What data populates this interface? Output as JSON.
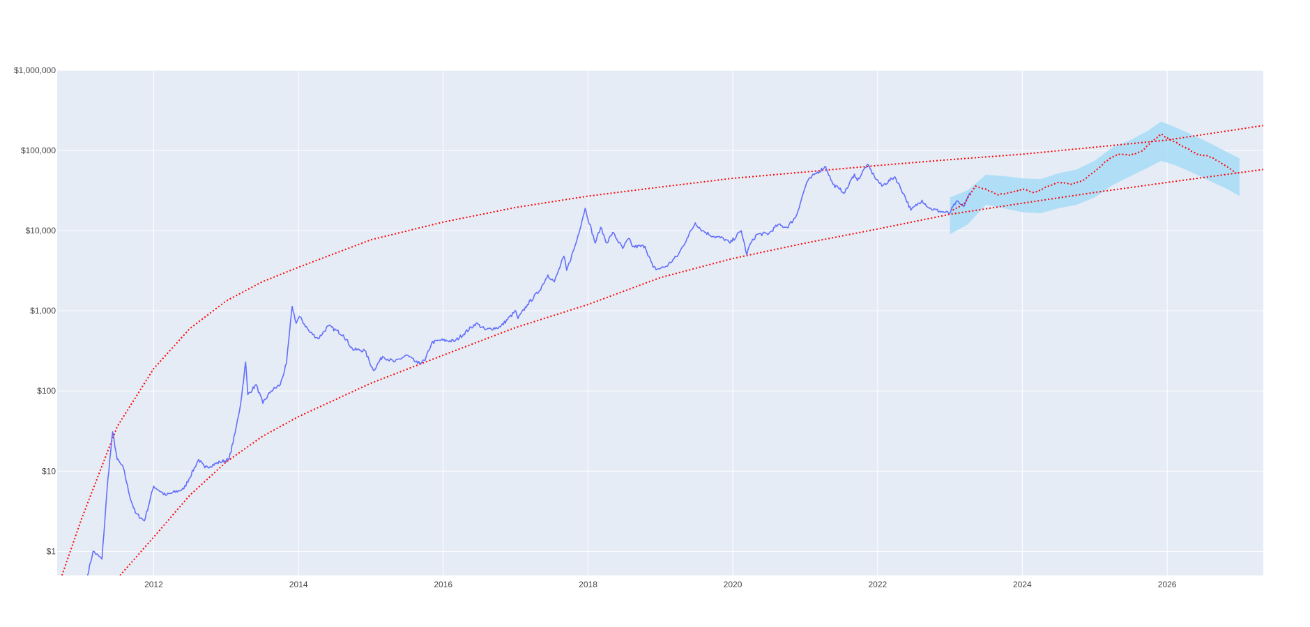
{
  "chart_data": {
    "type": "line",
    "title": "",
    "xlabel": "",
    "ylabel": "",
    "x_scale": "date",
    "y_scale": "log",
    "xlim": [
      "2010-09-01",
      "2027-05-01"
    ],
    "ylim": [
      0.5,
      1000000
    ],
    "x_ticks": [
      "2012",
      "2014",
      "2016",
      "2018",
      "2020",
      "2022",
      "2024",
      "2026"
    ],
    "y_ticks": [
      {
        "value": 1,
        "label": "$1"
      },
      {
        "value": 10,
        "label": "$10"
      },
      {
        "value": 100,
        "label": "$100"
      },
      {
        "value": 1000,
        "label": "$1,000"
      },
      {
        "value": 10000,
        "label": "$10,000"
      },
      {
        "value": 100000,
        "label": "$100,000"
      },
      {
        "value": 1000000,
        "label": "$1,000,000"
      }
    ],
    "grid": true,
    "legend": "none",
    "colors": {
      "plot_background": "#e5ecf6",
      "grid": "#ffffff",
      "price": "#636efa",
      "forecast": "#ff0000",
      "band": "#a8dcf7",
      "bounds": "#ff0000"
    },
    "series": [
      {
        "style": "solid",
        "x": [
          "2011-02-01",
          "2011-03-01",
          "2011-04-15",
          "2011-05-15",
          "2011-06-08",
          "2011-07-01",
          "2011-08-01",
          "2011-09-01",
          "2011-10-01",
          "2011-11-15",
          "2012-01-01",
          "2012-03-01",
          "2012-06-01",
          "2012-08-15",
          "2012-09-15",
          "2012-12-01",
          "2013-01-15",
          "2013-02-15",
          "2013-03-15",
          "2013-04-09",
          "2013-04-20",
          "2013-06-01",
          "2013-07-05",
          "2013-08-15",
          "2013-10-01",
          "2013-11-01",
          "2013-11-30",
          "2013-12-20",
          "2014-01-05",
          "2014-02-25",
          "2014-04-10",
          "2014-06-01",
          "2014-08-15",
          "2014-10-01",
          "2014-12-01",
          "2015-01-14",
          "2015-03-01",
          "2015-05-01",
          "2015-07-01",
          "2015-08-25",
          "2015-10-01",
          "2015-11-04",
          "2015-12-15",
          "2016-03-01",
          "2016-06-15",
          "2016-08-01",
          "2016-10-15",
          "2017-01-01",
          "2017-01-12",
          "2017-03-01",
          "2017-05-01",
          "2017-06-12",
          "2017-07-15",
          "2017-09-01",
          "2017-09-15",
          "2017-11-01",
          "2017-12-17",
          "2018-02-06",
          "2018-03-05",
          "2018-04-06",
          "2018-05-05",
          "2018-06-25",
          "2018-07-25",
          "2018-08-15",
          "2018-10-15",
          "2018-11-25",
          "2018-12-15",
          "2019-02-01",
          "2019-04-01",
          "2019-05-15",
          "2019-06-26",
          "2019-08-01",
          "2019-09-25",
          "2019-11-15",
          "2019-12-18",
          "2020-02-13",
          "2020-03-12",
          "2020-03-25",
          "2020-05-01",
          "2020-07-01",
          "2020-08-15",
          "2020-10-01",
          "2020-11-15",
          "2021-01-08",
          "2021-02-15",
          "2021-04-14",
          "2021-05-20",
          "2021-06-21",
          "2021-07-20",
          "2021-09-06",
          "2021-09-21",
          "2021-11-09",
          "2021-12-15",
          "2022-01-22",
          "2022-03-29",
          "2022-05-12",
          "2022-06-18",
          "2022-08-13",
          "2022-09-20",
          "2022-11-09",
          "2022-12-30",
          "2023-02-01",
          "2023-03-10",
          "2023-04-14"
        ],
        "y": [
          0.5,
          1,
          0.8,
          8,
          31,
          14,
          11,
          5,
          3,
          2.4,
          6.5,
          5,
          6,
          14,
          11,
          13,
          14,
          30,
          70,
          230,
          90,
          120,
          70,
          100,
          120,
          220,
          1140,
          700,
          850,
          550,
          450,
          650,
          500,
          330,
          320,
          180,
          270,
          230,
          280,
          220,
          240,
          400,
          430,
          420,
          700,
          580,
          630,
          1000,
          800,
          1200,
          1800,
          2800,
          2300,
          4800,
          3200,
          7000,
          19000,
          7000,
          11000,
          7000,
          9500,
          6000,
          8000,
          6300,
          6400,
          3500,
          3300,
          3600,
          5000,
          8000,
          12500,
          10000,
          8500,
          8000,
          7000,
          10000,
          5000,
          6500,
          9000,
          9200,
          11800,
          11000,
          15000,
          40000,
          50000,
          63000,
          38000,
          33000,
          30000,
          51000,
          42000,
          67000,
          48000,
          36000,
          47000,
          29000,
          18000,
          24000,
          19000,
          17500,
          16500,
          23000,
          20000,
          30000
        ]
      },
      {
        "style": "dotted",
        "x": [
          "2023-01-15",
          "2023-03-15",
          "2023-05-10",
          "2023-07-01",
          "2023-09-01",
          "2023-11-01",
          "2024-01-01",
          "2024-03-01",
          "2024-05-01",
          "2024-07-01",
          "2024-09-01",
          "2024-11-01",
          "2025-01-01",
          "2025-03-01",
          "2025-05-01",
          "2025-07-01",
          "2025-09-01",
          "2025-10-15",
          "2025-12-01",
          "2026-02-01",
          "2026-04-01",
          "2026-06-01",
          "2026-08-01",
          "2026-10-01",
          "2026-12-15"
        ],
        "y": [
          18000,
          22000,
          36000,
          33000,
          28000,
          30000,
          33000,
          30000,
          35000,
          40000,
          38000,
          42000,
          55000,
          75000,
          90000,
          88000,
          100000,
          130000,
          160000,
          130000,
          110000,
          90000,
          85000,
          70000,
          52000
        ]
      },
      {
        "style": "band",
        "x": [
          "2023-01-01",
          "2023-04-01",
          "2023-07-01",
          "2023-10-01",
          "2024-01-01",
          "2024-04-01",
          "2024-07-01",
          "2024-10-01",
          "2025-01-01",
          "2025-04-01",
          "2025-07-01",
          "2025-10-01",
          "2025-12-01",
          "2026-02-01",
          "2026-05-01",
          "2026-08-01",
          "2026-11-01",
          "2027-01-01"
        ],
        "upper": [
          26000,
          32000,
          50000,
          48000,
          45000,
          44000,
          52000,
          58000,
          75000,
          110000,
          135000,
          180000,
          230000,
          200000,
          160000,
          125000,
          95000,
          80000
        ],
        "lower": [
          9000,
          12000,
          21000,
          19000,
          17000,
          16500,
          19000,
          21000,
          26000,
          37000,
          48000,
          62000,
          74000,
          67000,
          54000,
          42000,
          33000,
          27000
        ]
      },
      {
        "style": "dotted",
        "x": [
          "2010-09-25",
          "2011-01-01",
          "2011-07-01",
          "2012-01-01",
          "2012-07-01",
          "2013-01-01",
          "2013-07-01",
          "2014-01-01",
          "2015-01-01",
          "2016-01-01",
          "2017-01-01",
          "2018-01-01",
          "2019-01-01",
          "2020-01-01",
          "2021-01-01",
          "2022-01-01",
          "2023-01-01",
          "2024-01-01",
          "2025-01-01",
          "2026-01-01",
          "2027-05-01"
        ],
        "y": [
          0.5,
          2.5,
          36,
          190,
          600,
          1330,
          2300,
          3500,
          7700,
          12800,
          19500,
          27000,
          35000,
          45000,
          54000,
          65000,
          77000,
          90000,
          110000,
          135000,
          205000
        ]
      },
      {
        "style": "dotted",
        "x": [
          "2011-07-15",
          "2012-01-01",
          "2012-07-01",
          "2013-01-01",
          "2013-07-01",
          "2014-01-01",
          "2015-01-01",
          "2016-01-01",
          "2017-01-01",
          "2018-01-01",
          "2019-01-01",
          "2020-01-01",
          "2021-01-01",
          "2022-01-01",
          "2023-01-01",
          "2024-01-01",
          "2025-01-01",
          "2026-01-01",
          "2027-05-01"
        ],
        "y": [
          0.5,
          1.5,
          5,
          13,
          27,
          48,
          125,
          280,
          620,
          1200,
          2600,
          4500,
          7000,
          10500,
          16000,
          22000,
          30000,
          40000,
          58000
        ]
      }
    ]
  }
}
